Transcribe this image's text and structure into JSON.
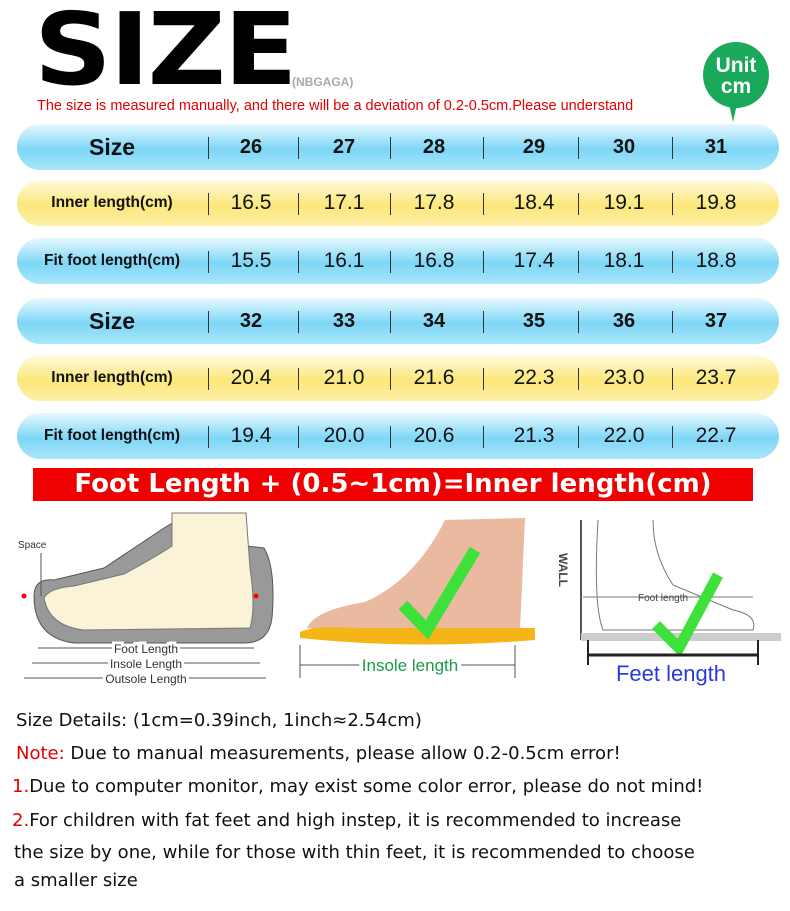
{
  "header": {
    "title": "SIZE",
    "brand": "(NBGAGA)",
    "note": "The size is measured manually, and there will be a deviation of 0.2-0.5cm.Please understand",
    "unit_line1": "Unit",
    "unit_line2": "cm"
  },
  "tables": [
    {
      "rows": [
        {
          "label": "Size",
          "style": "blue",
          "values": [
            "26",
            "27",
            "28",
            "29",
            "30",
            "31"
          ]
        },
        {
          "label": "Inner length(cm)",
          "style": "yellow",
          "values": [
            "16.5",
            "17.1",
            "17.8",
            "18.4",
            "19.1",
            "19.8"
          ]
        },
        {
          "label": "Fit foot length(cm)",
          "style": "blue",
          "values": [
            "15.5",
            "16.1",
            "16.8",
            "17.4",
            "18.1",
            "18.8"
          ]
        }
      ]
    },
    {
      "rows": [
        {
          "label": "Size",
          "style": "blue",
          "values": [
            "32",
            "33",
            "34",
            "35",
            "36",
            "37"
          ]
        },
        {
          "label": "Inner length(cm)",
          "style": "yellow",
          "values": [
            "20.4",
            "21.0",
            "21.6",
            "22.3",
            "23.0",
            "23.7"
          ]
        },
        {
          "label": "Fit foot length(cm)",
          "style": "blue",
          "values": [
            "19.4",
            "20.0",
            "20.6",
            "21.3",
            "22.0",
            "22.7"
          ]
        }
      ]
    }
  ],
  "formula": "Foot Length + (0.5~1cm)=Inner length(cm)",
  "illustrations": {
    "space": "Space",
    "foot_length": "Foot Length",
    "insole_length": "Insole Length",
    "outsole_length": "Outsole Length",
    "insole_caption": "Insole length",
    "wall": "WALL",
    "foot_lengt": "Foot length",
    "feet_caption": "Feet length"
  },
  "notes": {
    "details": "Size Details: (1cm=0.39inch, 1inch≈2.54cm)",
    "note_prefix": "Note:",
    "note": " Due to manual measurements, please allow 0.2-0.5cm error!",
    "item1_num": "1.",
    "item1": "Due to computer monitor, may exist some color error, please do not mind!",
    "item2_num": "2.",
    "item2_line1": "For children with fat feet and high instep, it is recommended to increase",
    "item2_line2": "the size by one, while for those with thin feet, it is recommended to choose",
    "item2_line3": "a smaller size"
  }
}
